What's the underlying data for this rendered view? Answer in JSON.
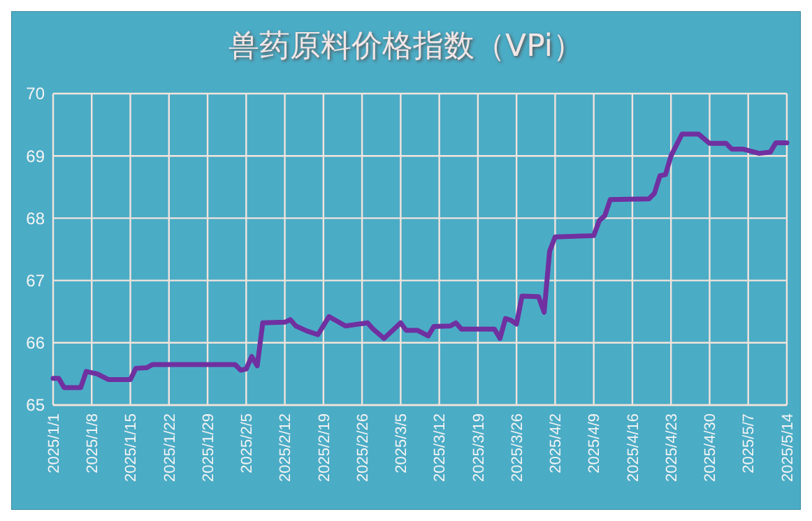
{
  "chart_data": {
    "type": "line",
    "title": "兽药原料价格指数（VPi）",
    "x": [
      "2025-01-01",
      "2025-01-02",
      "2025-01-03",
      "2025-01-06",
      "2025-01-07",
      "2025-01-09",
      "2025-01-11",
      "2025-01-15",
      "2025-01-16",
      "2025-01-18",
      "2025-01-19",
      "2025-02-03",
      "2025-02-04",
      "2025-02-05",
      "2025-02-06",
      "2025-02-07",
      "2025-02-08",
      "2025-02-12",
      "2025-02-13",
      "2025-02-14",
      "2025-02-16",
      "2025-02-18",
      "2025-02-20",
      "2025-02-21",
      "2025-02-23",
      "2025-02-27",
      "2025-02-28",
      "2025-03-02",
      "2025-03-05",
      "2025-03-06",
      "2025-03-08",
      "2025-03-10",
      "2025-03-11",
      "2025-03-14",
      "2025-03-15",
      "2025-03-16",
      "2025-03-22",
      "2025-03-23",
      "2025-03-24",
      "2025-03-25",
      "2025-03-26",
      "2025-03-27",
      "2025-03-30",
      "2025-03-31",
      "2025-04-01",
      "2025-04-02",
      "2025-04-09",
      "2025-04-10",
      "2025-04-11",
      "2025-04-12",
      "2025-04-19",
      "2025-04-20",
      "2025-04-21",
      "2025-04-22",
      "2025-04-23",
      "2025-04-25",
      "2025-04-28",
      "2025-04-30",
      "2025-05-03",
      "2025-05-04",
      "2025-05-06",
      "2025-05-09",
      "2025-05-11",
      "2025-05-12",
      "2025-05-14"
    ],
    "series": [
      {
        "color": "#7030a0",
        "values": [
          65.43,
          65.43,
          65.28,
          65.28,
          65.54,
          65.5,
          65.41,
          65.41,
          65.59,
          65.6,
          65.65,
          65.65,
          65.56,
          65.58,
          65.78,
          65.63,
          66.32,
          66.33,
          66.37,
          66.27,
          66.19,
          66.13,
          66.42,
          66.37,
          66.27,
          66.32,
          66.22,
          66.07,
          66.32,
          66.2,
          66.2,
          66.11,
          66.26,
          66.27,
          66.32,
          66.22,
          66.22,
          66.07,
          66.39,
          66.36,
          66.3,
          66.75,
          66.74,
          66.49,
          67.47,
          67.7,
          67.72,
          67.96,
          68.04,
          68.3,
          68.31,
          68.4,
          68.68,
          68.7,
          69.0,
          69.35,
          69.35,
          69.2,
          69.2,
          69.11,
          69.11,
          69.04,
          69.06,
          69.21,
          69.21
        ]
      }
    ],
    "xlim": [
      "2025-01-01",
      "2025-05-14"
    ],
    "xticks": [
      {
        "value": "2025-01-01",
        "label": "2025/1/1"
      },
      {
        "value": "2025-01-08",
        "label": "2025/1/8"
      },
      {
        "value": "2025-01-15",
        "label": "2025/1/15"
      },
      {
        "value": "2025-01-22",
        "label": "2025/1/22"
      },
      {
        "value": "2025-01-29",
        "label": "2025/1/29"
      },
      {
        "value": "2025-02-05",
        "label": "2025/2/5"
      },
      {
        "value": "2025-02-12",
        "label": "2025/2/12"
      },
      {
        "value": "2025-02-19",
        "label": "2025/2/19"
      },
      {
        "value": "2025-02-26",
        "label": "2025/2/26"
      },
      {
        "value": "2025-03-05",
        "label": "2025/3/5"
      },
      {
        "value": "2025-03-12",
        "label": "2025/3/12"
      },
      {
        "value": "2025-03-19",
        "label": "2025/3/19"
      },
      {
        "value": "2025-03-26",
        "label": "2025/3/26"
      },
      {
        "value": "2025-04-02",
        "label": "2025/4/2"
      },
      {
        "value": "2025-04-09",
        "label": "2025/4/9"
      },
      {
        "value": "2025-04-16",
        "label": "2025/4/16"
      },
      {
        "value": "2025-04-23",
        "label": "2025/4/23"
      },
      {
        "value": "2025-04-30",
        "label": "2025/4/30"
      },
      {
        "value": "2025-05-07",
        "label": "2025/5/7"
      },
      {
        "value": "2025-05-14",
        "label": "2025/5/14"
      }
    ],
    "ylim": [
      65,
      70
    ],
    "yticks": [
      65,
      66,
      67,
      68,
      69,
      70
    ],
    "grid": true,
    "marker": "none",
    "line_style": "solid"
  }
}
